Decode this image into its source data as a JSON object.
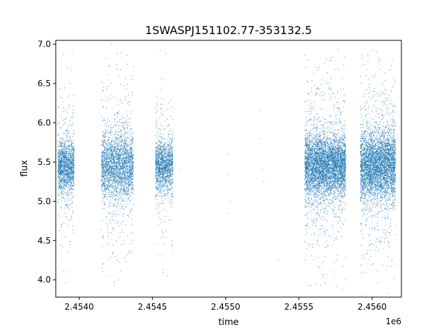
{
  "chart_data": {
    "type": "scatter",
    "title": "1SWASPJ151102.77-353132.5",
    "xlabel": "time",
    "ylabel": "flux",
    "x_offset_label": "1e6",
    "xlim": [
      2.45384,
      2.4562
    ],
    "ylim": [
      3.78,
      7.05
    ],
    "grid": false,
    "marker_color": "#1f77b4",
    "x_ticks": [
      {
        "value": 2.454,
        "label": "2.4540"
      },
      {
        "value": 2.4545,
        "label": "2.4545"
      },
      {
        "value": 2.455,
        "label": "2.4550"
      },
      {
        "value": 2.4555,
        "label": "2.4555"
      },
      {
        "value": 2.456,
        "label": "2.4560"
      }
    ],
    "y_ticks": [
      {
        "value": 4.0,
        "label": "4.0"
      },
      {
        "value": 4.5,
        "label": "4.5"
      },
      {
        "value": 5.0,
        "label": "5.0"
      },
      {
        "value": 5.5,
        "label": "5.5"
      },
      {
        "value": 6.0,
        "label": "6.0"
      },
      {
        "value": 6.5,
        "label": "6.5"
      },
      {
        "value": 7.0,
        "label": "7.0"
      }
    ],
    "series": [
      {
        "points": [
          {
            "x": 2.45387,
            "y": 5.45
          },
          {
            "x": 2.45388,
            "y": 5.3
          },
          {
            "x": 2.45389,
            "y": 5.6
          },
          {
            "x": 2.4539,
            "y": 5.2
          },
          {
            "x": 2.45391,
            "y": 5.5
          },
          {
            "x": 2.45392,
            "y": 5.7
          },
          {
            "x": 2.45393,
            "y": 4.9
          },
          {
            "x": 2.45394,
            "y": 5.4
          },
          {
            "x": 2.45395,
            "y": 5.8
          },
          {
            "x": 2.45388,
            "y": 4.7
          },
          {
            "x": 2.45389,
            "y": 6.87
          },
          {
            "x": 2.45392,
            "y": 6.7
          },
          {
            "x": 2.45393,
            "y": 6.2
          },
          {
            "x": 2.45394,
            "y": 4.45
          },
          {
            "x": 2.45391,
            "y": 3.96
          },
          {
            "x": 2.45393,
            "y": 4.1
          },
          {
            "x": 2.4539,
            "y": 5.0
          },
          {
            "x": 2.45396,
            "y": 5.35
          },
          {
            "x": 2.45421,
            "y": 5.4
          },
          {
            "x": 2.45422,
            "y": 5.6
          },
          {
            "x": 2.45424,
            "y": 5.3
          },
          {
            "x": 2.45425,
            "y": 5.5
          },
          {
            "x": 2.45427,
            "y": 5.2
          },
          {
            "x": 2.45428,
            "y": 5.7
          },
          {
            "x": 2.45429,
            "y": 5.45
          },
          {
            "x": 2.45423,
            "y": 4.95
          },
          {
            "x": 2.45426,
            "y": 6.0
          },
          {
            "x": 2.45426,
            "y": 6.88
          },
          {
            "x": 2.45427,
            "y": 6.6
          },
          {
            "x": 2.45425,
            "y": 4.3
          },
          {
            "x": 2.45427,
            "y": 4.0
          },
          {
            "x": 2.45424,
            "y": 3.93
          },
          {
            "x": 2.45428,
            "y": 4.6
          },
          {
            "x": 2.45431,
            "y": 5.55
          },
          {
            "x": 2.45431,
            "y": 5.1
          },
          {
            "x": 2.45433,
            "y": 5.4
          },
          {
            "x": 2.45455,
            "y": 5.4
          },
          {
            "x": 2.45456,
            "y": 5.6
          },
          {
            "x": 2.45457,
            "y": 5.3
          },
          {
            "x": 2.45458,
            "y": 5.5
          },
          {
            "x": 2.45459,
            "y": 5.2
          },
          {
            "x": 2.4546,
            "y": 5.45
          },
          {
            "x": 2.45461,
            "y": 5.7
          },
          {
            "x": 2.45459,
            "y": 6.88
          },
          {
            "x": 2.45458,
            "y": 6.3
          },
          {
            "x": 2.45457,
            "y": 4.6
          },
          {
            "x": 2.4546,
            "y": 4.05
          },
          {
            "x": 2.45462,
            "y": 5.8
          },
          {
            "x": 2.45468,
            "y": 5.4
          },
          {
            "x": 2.45502,
            "y": 5.6
          },
          {
            "x": 2.45502,
            "y": 5.35
          },
          {
            "x": 2.45503,
            "y": 5.0
          },
          {
            "x": 2.45502,
            "y": 4.85
          },
          {
            "x": 2.45524,
            "y": 6.15
          },
          {
            "x": 2.45524,
            "y": 5.8
          },
          {
            "x": 2.45525,
            "y": 5.4
          },
          {
            "x": 2.45526,
            "y": 5.25
          },
          {
            "x": 2.45536,
            "y": 4.25
          },
          {
            "x": 2.45561,
            "y": 5.4
          },
          {
            "x": 2.45563,
            "y": 5.6
          },
          {
            "x": 2.45565,
            "y": 5.3
          },
          {
            "x": 2.45567,
            "y": 5.5
          },
          {
            "x": 2.45569,
            "y": 5.2
          },
          {
            "x": 2.45571,
            "y": 5.45
          },
          {
            "x": 2.45573,
            "y": 5.7
          },
          {
            "x": 2.45575,
            "y": 5.35
          },
          {
            "x": 2.45564,
            "y": 6.7
          },
          {
            "x": 2.45572,
            "y": 6.8
          },
          {
            "x": 2.45568,
            "y": 4.3
          },
          {
            "x": 2.45562,
            "y": 3.95
          },
          {
            "x": 2.45574,
            "y": 4.1
          },
          {
            "x": 2.45566,
            "y": 6.4
          },
          {
            "x": 2.45576,
            "y": 4.8
          },
          {
            "x": 2.45597,
            "y": 5.4
          },
          {
            "x": 2.45599,
            "y": 5.6
          },
          {
            "x": 2.45601,
            "y": 5.3
          },
          {
            "x": 2.45603,
            "y": 5.5
          },
          {
            "x": 2.45605,
            "y": 5.2
          },
          {
            "x": 2.45607,
            "y": 5.45
          },
          {
            "x": 2.45609,
            "y": 5.7
          },
          {
            "x": 2.45603,
            "y": 6.9
          },
          {
            "x": 2.45606,
            "y": 6.8
          },
          {
            "x": 2.456,
            "y": 4.2
          },
          {
            "x": 2.45604,
            "y": 3.96
          },
          {
            "x": 2.45608,
            "y": 4.4
          },
          {
            "x": 2.45598,
            "y": 6.45
          },
          {
            "x": 2.4561,
            "y": 4.9
          }
        ],
        "clusters": [
          {
            "center": 2.45391,
            "spread": 5.5e-05,
            "core_sd": 0.16,
            "tail_sd": 0.52,
            "tail_fraction": 0.15,
            "count": 1500
          },
          {
            "center": 2.45426,
            "spread": 0.00011,
            "core_sd": 0.2,
            "tail_sd": 0.6,
            "tail_fraction": 0.18,
            "count": 2600
          },
          {
            "center": 2.45458,
            "spread": 6e-05,
            "core_sd": 0.16,
            "tail_sd": 0.55,
            "tail_fraction": 0.13,
            "count": 1500
          },
          {
            "center": 2.45568,
            "spread": 0.00014,
            "core_sd": 0.19,
            "tail_sd": 0.55,
            "tail_fraction": 0.17,
            "count": 4800
          },
          {
            "center": 2.45604,
            "spread": 0.00012,
            "core_sd": 0.21,
            "tail_sd": 0.58,
            "tail_fraction": 0.18,
            "count": 4200
          }
        ],
        "center_flux": 5.45
      }
    ]
  }
}
